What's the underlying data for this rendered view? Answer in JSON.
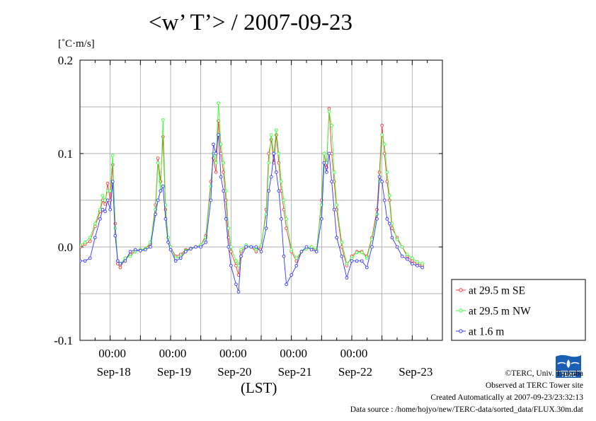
{
  "page": {
    "title": "<w’ T’> / 2007-09-23",
    "y_unit": "[˚C·m/s]",
    "x_unit": "(LST)",
    "copyright": "©TERC, Univ. Tsukuba",
    "observed": "Observed at TERC Tower site",
    "created": "Created Automatically at 2007-09-23/23:32:13",
    "datasource": "Data source : /home/hojyo/new/TERC-data/sorted_data/FLUX.30m.dat",
    "logo_text": "TERC"
  },
  "colors": {
    "se": "#ff3333",
    "nw": "#33ff33",
    "m16": "#3333ff",
    "grid": "#999999"
  },
  "chart_data": {
    "type": "line",
    "title": "<w’ T’> / 2007-09-23",
    "ylabel": "[˚C·m/s]",
    "xlabel": "(LST)",
    "ylim": [
      -0.1,
      0.2
    ],
    "yticks": [
      -0.1,
      0.0,
      0.1,
      0.2
    ],
    "ytick_labels": [
      "-0.1",
      "0.0",
      "0.1",
      "0.2"
    ],
    "xlim_hours": [
      0,
      144
    ],
    "x_start": "2007-09-17 12:00",
    "xticks_hours": [
      12,
      36,
      60,
      84,
      108
    ],
    "xtick_labels": [
      "00:00",
      "00:00",
      "00:00",
      "00:00",
      "00:00"
    ],
    "day_labels": [
      "Sep-18",
      "Sep-19",
      "Sep-20",
      "Sep-21",
      "Sep-22",
      "Sep-23"
    ],
    "day_label_hours": [
      12,
      36,
      60,
      84,
      108,
      132
    ],
    "grid": true,
    "legend": "right",
    "series": [
      {
        "name": "at 29.5 m SE",
        "color": "#ff3333",
        "marker": "circle",
        "points": [
          [
            0,
            0.0
          ],
          [
            2,
            0.003
          ],
          [
            4,
            0.006
          ],
          [
            6,
            0.022
          ],
          [
            8,
            0.038
          ],
          [
            9,
            0.05
          ],
          [
            10,
            0.046
          ],
          [
            11,
            0.068
          ],
          [
            12,
            0.05
          ],
          [
            13,
            0.088
          ],
          [
            14,
            0.025
          ],
          [
            15,
            -0.018
          ],
          [
            16,
            -0.022
          ],
          [
            18,
            -0.012
          ],
          [
            20,
            -0.008
          ],
          [
            22,
            -0.004
          ],
          [
            24,
            -0.003
          ],
          [
            26,
            -0.002
          ],
          [
            28,
            0.003
          ],
          [
            30,
            0.045
          ],
          [
            31,
            0.095
          ],
          [
            32,
            0.07
          ],
          [
            33,
            0.118
          ],
          [
            34,
            0.04
          ],
          [
            35,
            0.01
          ],
          [
            36,
            0.0
          ],
          [
            38,
            -0.01
          ],
          [
            40,
            -0.008
          ],
          [
            42,
            -0.003
          ],
          [
            44,
            -0.002
          ],
          [
            46,
            0.0
          ],
          [
            48,
            0.002
          ],
          [
            50,
            0.012
          ],
          [
            52,
            0.07
          ],
          [
            53,
            0.095
          ],
          [
            54,
            0.08
          ],
          [
            55,
            0.135
          ],
          [
            56,
            0.1
          ],
          [
            57,
            0.08
          ],
          [
            58,
            0.05
          ],
          [
            59,
            0.01
          ],
          [
            60,
            -0.005
          ],
          [
            62,
            -0.02
          ],
          [
            63,
            -0.03
          ],
          [
            64,
            -0.005
          ],
          [
            66,
            0.0
          ],
          [
            68,
            0.0
          ],
          [
            70,
            -0.005
          ],
          [
            72,
            0.0
          ],
          [
            74,
            0.04
          ],
          [
            75,
            0.1
          ],
          [
            76,
            0.115
          ],
          [
            77,
            0.09
          ],
          [
            78,
            0.12
          ],
          [
            79,
            0.09
          ],
          [
            80,
            0.06
          ],
          [
            81,
            0.04
          ],
          [
            82,
            0.02
          ],
          [
            84,
            -0.005
          ],
          [
            86,
            -0.015
          ],
          [
            88,
            -0.005
          ],
          [
            90,
            -0.002
          ],
          [
            92,
            0.0
          ],
          [
            94,
            -0.005
          ],
          [
            96,
            0.05
          ],
          [
            97,
            0.1
          ],
          [
            98,
            0.085
          ],
          [
            99,
            0.148
          ],
          [
            100,
            0.1
          ],
          [
            101,
            0.07
          ],
          [
            102,
            0.04
          ],
          [
            104,
            0.0
          ],
          [
            106,
            -0.02
          ],
          [
            108,
            -0.01
          ],
          [
            110,
            -0.005
          ],
          [
            112,
            -0.005
          ],
          [
            114,
            -0.01
          ],
          [
            116,
            0.01
          ],
          [
            118,
            0.04
          ],
          [
            119,
            0.08
          ],
          [
            120,
            0.13
          ],
          [
            121,
            0.1
          ],
          [
            122,
            0.07
          ],
          [
            123,
            0.05
          ],
          [
            124,
            0.02
          ],
          [
            126,
            0.01
          ],
          [
            128,
            0.0
          ],
          [
            130,
            -0.01
          ],
          [
            132,
            -0.015
          ],
          [
            134,
            -0.018
          ],
          [
            136,
            -0.02
          ]
        ]
      },
      {
        "name": "at 29.5 m NW",
        "color": "#33ff33",
        "marker": "circle",
        "points": [
          [
            0,
            0.002
          ],
          [
            2,
            0.005
          ],
          [
            4,
            0.01
          ],
          [
            6,
            0.025
          ],
          [
            8,
            0.04
          ],
          [
            9,
            0.055
          ],
          [
            10,
            0.05
          ],
          [
            11,
            0.06
          ],
          [
            12,
            0.06
          ],
          [
            13,
            0.098
          ],
          [
            14,
            0.02
          ],
          [
            15,
            -0.015
          ],
          [
            16,
            -0.018
          ],
          [
            18,
            -0.012
          ],
          [
            20,
            -0.01
          ],
          [
            22,
            -0.005
          ],
          [
            24,
            -0.003
          ],
          [
            26,
            -0.002
          ],
          [
            28,
            0.005
          ],
          [
            30,
            0.04
          ],
          [
            31,
            0.09
          ],
          [
            32,
            0.06
          ],
          [
            33,
            0.136
          ],
          [
            34,
            0.045
          ],
          [
            35,
            0.01
          ],
          [
            36,
            0.0
          ],
          [
            38,
            -0.012
          ],
          [
            40,
            -0.01
          ],
          [
            42,
            -0.004
          ],
          [
            44,
            -0.002
          ],
          [
            46,
            0.0
          ],
          [
            48,
            0.002
          ],
          [
            50,
            0.01
          ],
          [
            52,
            0.065
          ],
          [
            53,
            0.1
          ],
          [
            54,
            0.09
          ],
          [
            55,
            0.154
          ],
          [
            56,
            0.11
          ],
          [
            57,
            0.09
          ],
          [
            58,
            0.06
          ],
          [
            59,
            0.02
          ],
          [
            60,
            0.0
          ],
          [
            62,
            -0.015
          ],
          [
            63,
            -0.02
          ],
          [
            64,
            -0.003
          ],
          [
            66,
            0.002
          ],
          [
            68,
            0.0
          ],
          [
            70,
            -0.003
          ],
          [
            72,
            0.002
          ],
          [
            74,
            0.035
          ],
          [
            75,
            0.09
          ],
          [
            76,
            0.12
          ],
          [
            77,
            0.1
          ],
          [
            78,
            0.125
          ],
          [
            79,
            0.1
          ],
          [
            80,
            0.07
          ],
          [
            81,
            0.05
          ],
          [
            82,
            0.03
          ],
          [
            84,
            -0.003
          ],
          [
            86,
            -0.012
          ],
          [
            88,
            -0.005
          ],
          [
            90,
            -0.002
          ],
          [
            92,
            0.0
          ],
          [
            94,
            -0.003
          ],
          [
            96,
            0.045
          ],
          [
            97,
            0.1
          ],
          [
            98,
            0.09
          ],
          [
            99,
            0.145
          ],
          [
            100,
            0.13
          ],
          [
            101,
            0.08
          ],
          [
            102,
            0.045
          ],
          [
            104,
            0.005
          ],
          [
            106,
            -0.018
          ],
          [
            108,
            -0.012
          ],
          [
            110,
            -0.006
          ],
          [
            112,
            -0.006
          ],
          [
            114,
            -0.012
          ],
          [
            116,
            0.008
          ],
          [
            118,
            0.035
          ],
          [
            119,
            0.07
          ],
          [
            120,
            0.12
          ],
          [
            121,
            0.11
          ],
          [
            122,
            0.08
          ],
          [
            123,
            0.055
          ],
          [
            124,
            0.025
          ],
          [
            126,
            0.008
          ],
          [
            128,
            0.0
          ],
          [
            130,
            -0.008
          ],
          [
            132,
            -0.012
          ],
          [
            134,
            -0.016
          ],
          [
            136,
            -0.018
          ]
        ]
      },
      {
        "name": "at 1.6 m",
        "color": "#3333ff",
        "marker": "circle",
        "points": [
          [
            0,
            -0.015
          ],
          [
            2,
            -0.015
          ],
          [
            4,
            -0.012
          ],
          [
            6,
            0.01
          ],
          [
            8,
            0.03
          ],
          [
            9,
            0.04
          ],
          [
            10,
            0.038
          ],
          [
            11,
            0.05
          ],
          [
            12,
            0.04
          ],
          [
            13,
            0.07
          ],
          [
            14,
            0.012
          ],
          [
            15,
            -0.015
          ],
          [
            16,
            -0.018
          ],
          [
            18,
            -0.015
          ],
          [
            20,
            -0.005
          ],
          [
            22,
            -0.003
          ],
          [
            24,
            -0.004
          ],
          [
            26,
            -0.003
          ],
          [
            28,
            0.0
          ],
          [
            30,
            0.035
          ],
          [
            31,
            0.05
          ],
          [
            32,
            0.06
          ],
          [
            33,
            0.065
          ],
          [
            34,
            0.03
          ],
          [
            35,
            0.005
          ],
          [
            36,
            -0.003
          ],
          [
            38,
            -0.015
          ],
          [
            40,
            -0.012
          ],
          [
            42,
            -0.005
          ],
          [
            44,
            -0.002
          ],
          [
            46,
            0.0
          ],
          [
            48,
            0.0
          ],
          [
            50,
            0.005
          ],
          [
            52,
            0.05
          ],
          [
            53,
            0.11
          ],
          [
            54,
            0.1
          ],
          [
            55,
            0.12
          ],
          [
            56,
            0.075
          ],
          [
            57,
            0.06
          ],
          [
            58,
            0.03
          ],
          [
            59,
            0.0
          ],
          [
            60,
            -0.02
          ],
          [
            62,
            -0.04
          ],
          [
            63,
            -0.048
          ],
          [
            64,
            -0.01
          ],
          [
            66,
            0.0
          ],
          [
            68,
            0.0
          ],
          [
            70,
            0.0
          ],
          [
            72,
            -0.005
          ],
          [
            74,
            0.02
          ],
          [
            75,
            0.06
          ],
          [
            76,
            0.075
          ],
          [
            77,
            0.1
          ],
          [
            78,
            0.08
          ],
          [
            79,
            0.06
          ],
          [
            80,
            0.03
          ],
          [
            81,
            -0.01
          ],
          [
            82,
            -0.04
          ],
          [
            84,
            -0.03
          ],
          [
            86,
            -0.02
          ],
          [
            88,
            -0.005
          ],
          [
            90,
            0.0
          ],
          [
            92,
            -0.003
          ],
          [
            94,
            -0.005
          ],
          [
            96,
            0.03
          ],
          [
            97,
            0.09
          ],
          [
            98,
            0.08
          ],
          [
            99,
            0.1
          ],
          [
            100,
            0.07
          ],
          [
            101,
            0.04
          ],
          [
            102,
            0.01
          ],
          [
            104,
            -0.01
          ],
          [
            106,
            -0.033
          ],
          [
            108,
            -0.015
          ],
          [
            110,
            -0.015
          ],
          [
            112,
            -0.015
          ],
          [
            114,
            -0.022
          ],
          [
            116,
            0.0
          ],
          [
            118,
            0.03
          ],
          [
            119,
            0.075
          ],
          [
            120,
            0.07
          ],
          [
            121,
            0.05
          ],
          [
            122,
            0.03
          ],
          [
            123,
            0.025
          ],
          [
            124,
            0.01
          ],
          [
            126,
            0.0
          ],
          [
            128,
            -0.01
          ],
          [
            130,
            -0.013
          ],
          [
            132,
            -0.018
          ],
          [
            134,
            -0.02
          ],
          [
            136,
            -0.022
          ]
        ]
      }
    ]
  }
}
